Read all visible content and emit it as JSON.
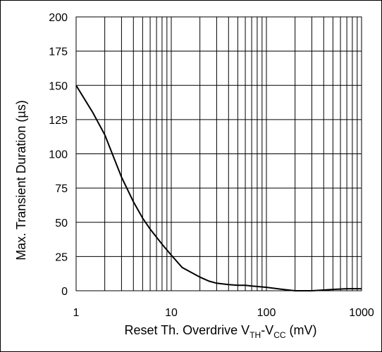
{
  "chart_data": {
    "type": "line",
    "xscale": "log",
    "xlim": [
      1,
      1000
    ],
    "ylim": [
      0,
      200
    ],
    "grid": true,
    "xticks": [
      1,
      10,
      100,
      1000
    ],
    "xtick_labels": [
      "1",
      "10",
      "100",
      "1000"
    ],
    "yticks": [
      0,
      25,
      50,
      75,
      100,
      125,
      150,
      175,
      200
    ],
    "ytick_labels": [
      "0",
      "25",
      "50",
      "75",
      "100",
      "125",
      "150",
      "175",
      "200"
    ],
    "ylabel": "Max. Transient Duration (µs)",
    "xlabel": {
      "prefix": "Reset Th. Overdrive V",
      "sub1": "TH",
      "mid": "-V",
      "sub2": "CC",
      "suffix": " (mV)"
    },
    "series": [
      {
        "x": [
          1,
          1.5,
          2,
          3,
          4,
          5,
          6,
          8,
          10,
          13,
          20,
          25,
          30,
          40,
          50,
          60,
          70,
          100,
          150,
          200,
          300,
          500,
          700,
          1000
        ],
        "y": [
          150,
          130,
          114,
          83,
          65,
          53,
          45,
          34,
          26,
          17,
          10,
          7,
          5.5,
          4.5,
          4,
          4,
          3.5,
          2.5,
          1,
          0,
          0,
          1,
          1.5,
          1.5
        ]
      }
    ]
  }
}
